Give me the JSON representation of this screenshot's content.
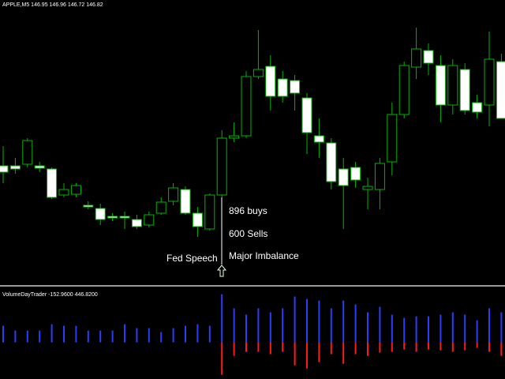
{
  "chart_data": [
    {
      "type": "candlestick",
      "title": "APPLE,M5 146.95 146.96 146.72 146.82",
      "ylim": [
        0,
        360
      ],
      "up_color": "#00b400",
      "down_color": "#ffffff",
      "open": [
        150,
        150,
        152,
        150,
        146,
        113,
        114,
        100,
        96,
        86,
        86,
        82,
        75,
        90,
        105,
        120,
        90,
        70,
        113,
        185,
        188,
        263,
        276,
        260,
        258,
        236,
        188,
        179,
        146,
        148,
        120,
        120,
        155,
        215,
        275,
        296,
        277,
        227,
        272,
        230,
        227,
        282
      ],
      "high": [
        175,
        160,
        185,
        155,
        148,
        128,
        128,
        105,
        102,
        90,
        92,
        88,
        92,
        110,
        128,
        124,
        98,
        115,
        195,
        205,
        270,
        322,
        290,
        270,
        265,
        242,
        210,
        185,
        160,
        155,
        135,
        160,
        230,
        282,
        325,
        305,
        290,
        285,
        280,
        240,
        320,
        292
      ],
      "low": [
        128,
        140,
        148,
        142,
        108,
        110,
        110,
        95,
        75,
        80,
        70,
        70,
        72,
        88,
        100,
        88,
        60,
        68,
        110,
        180,
        185,
        260,
        220,
        230,
        220,
        165,
        160,
        120,
        70,
        122,
        95,
        95,
        138,
        210,
        260,
        265,
        205,
        215,
        215,
        210,
        200,
        210
      ],
      "close": [
        142,
        146,
        182,
        147,
        110,
        120,
        125,
        98,
        82,
        84,
        84,
        73,
        88,
        104,
        122,
        90,
        73,
        113,
        185,
        188,
        263,
        272,
        238,
        238,
        242,
        192,
        180,
        130,
        125,
        132,
        124,
        153,
        215,
        277,
        298,
        280,
        227,
        277,
        220,
        218,
        285,
        210
      ],
      "annotations": [
        "896 buys",
        "600 Sells",
        "Major Imbalance",
        "Fed Speech"
      ]
    },
    {
      "type": "bar",
      "title": "VolumeDayTrader -152.9600 446.8200",
      "ylim": [
        -300,
        450
      ],
      "series": [
        {
          "color": "#2a3cff",
          "values": [
            142,
            101,
            101,
            101,
            155,
            142,
            142,
            101,
            101,
            101,
            155,
            122,
            122,
            88,
            122,
            142,
            155,
            142,
            412,
            291,
            237,
            291,
            257,
            291,
            392,
            372,
            358,
            291,
            358,
            325,
            257,
            304,
            237,
            210,
            223,
            223,
            237,
            257,
            237,
            189,
            291,
            257
          ]
        },
        {
          "color": "#ff1a1a",
          "values": [
            0,
            0,
            0,
            0,
            0,
            0,
            0,
            0,
            0,
            0,
            0,
            0,
            0,
            0,
            0,
            0,
            0,
            0,
            -277,
            -115,
            -81,
            -81,
            -101,
            -81,
            -196,
            -223,
            -169,
            -101,
            -183,
            -101,
            -115,
            -88,
            -81,
            -61,
            -81,
            -61,
            -68,
            -81,
            -68,
            -47,
            -81,
            -115
          ]
        }
      ]
    }
  ]
}
